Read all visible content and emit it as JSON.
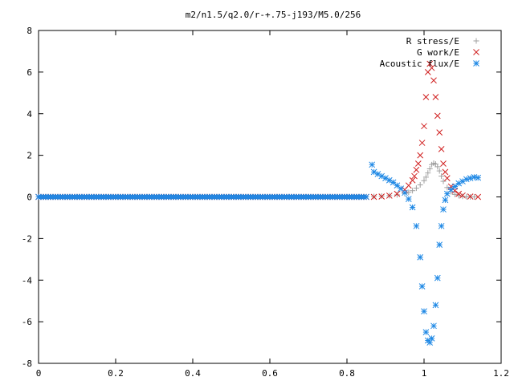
{
  "chart_data": {
    "type": "scatter",
    "title": "m2/n1.5/q2.0/r-+.75-j193/M5.0/256",
    "xlabel": "",
    "ylabel": "",
    "xlim": [
      0,
      1.2
    ],
    "ylim": [
      -8,
      8
    ],
    "x_ticks": [
      "0",
      "0.2",
      "0.4",
      "0.6",
      "0.8",
      "1",
      "1.2"
    ],
    "y_ticks": [
      "8",
      "6",
      "4",
      "2",
      "0",
      "-2",
      "-4",
      "-6",
      "-8"
    ],
    "x_tick_values": [
      0,
      0.2,
      0.4,
      0.6,
      0.8,
      1.0,
      1.2
    ],
    "y_tick_values": [
      8,
      6,
      4,
      2,
      0,
      -2,
      -4,
      -6,
      -8
    ],
    "grid": false,
    "legend_position": "top-right",
    "series": [
      {
        "name": "R stress/E",
        "marker": "plus",
        "color": "#a0a0a0",
        "x": [
          0.0,
          0.05,
          0.1,
          0.15,
          0.2,
          0.25,
          0.3,
          0.35,
          0.4,
          0.45,
          0.5,
          0.55,
          0.6,
          0.65,
          0.7,
          0.75,
          0.8,
          0.85,
          0.87,
          0.89,
          0.91,
          0.93,
          0.95,
          0.96,
          0.97,
          0.98,
          0.99,
          1.0,
          1.005,
          1.01,
          1.015,
          1.02,
          1.025,
          1.03,
          1.035,
          1.04,
          1.045,
          1.05,
          1.06,
          1.07,
          1.08,
          1.09,
          1.1,
          1.11,
          1.12,
          1.13
        ],
        "y": [
          0,
          0,
          0,
          0,
          0,
          0,
          0,
          0,
          0,
          0,
          0,
          0,
          0,
          0,
          0,
          0,
          0,
          0,
          0.02,
          0.04,
          0.06,
          0.1,
          0.16,
          0.22,
          0.3,
          0.42,
          0.58,
          0.78,
          0.95,
          1.15,
          1.35,
          1.55,
          1.62,
          1.58,
          1.45,
          1.25,
          1.0,
          0.75,
          0.45,
          0.25,
          0.12,
          0.06,
          0.03,
          0.01,
          0.0,
          0.0
        ]
      },
      {
        "name": "G work/E",
        "marker": "cross",
        "color": "#d02020",
        "x": [
          0.0,
          0.05,
          0.1,
          0.15,
          0.2,
          0.25,
          0.3,
          0.35,
          0.4,
          0.45,
          0.5,
          0.55,
          0.6,
          0.65,
          0.7,
          0.75,
          0.8,
          0.85,
          0.87,
          0.89,
          0.91,
          0.93,
          0.95,
          0.96,
          0.97,
          0.975,
          0.98,
          0.985,
          0.99,
          0.995,
          1.0,
          1.005,
          1.01,
          1.015,
          1.02,
          1.025,
          1.03,
          1.035,
          1.04,
          1.045,
          1.05,
          1.055,
          1.06,
          1.07,
          1.08,
          1.09,
          1.1,
          1.12,
          1.14
        ],
        "y": [
          0,
          0,
          0,
          0,
          0,
          0,
          0,
          0,
          0,
          0,
          0,
          0,
          0,
          0,
          0,
          0,
          0,
          0,
          0.0,
          0.02,
          0.06,
          0.15,
          0.35,
          0.55,
          0.8,
          1.0,
          1.3,
          1.6,
          2.0,
          2.6,
          3.4,
          4.8,
          6.0,
          6.4,
          6.2,
          5.6,
          4.8,
          3.9,
          3.1,
          2.3,
          1.6,
          1.2,
          0.9,
          0.5,
          0.3,
          0.15,
          0.07,
          0.02,
          0.0
        ]
      },
      {
        "name": "Acoustic flux/E",
        "marker": "star",
        "color": "#1e88e5",
        "x": [
          0.0,
          0.05,
          0.1,
          0.15,
          0.2,
          0.25,
          0.3,
          0.35,
          0.4,
          0.45,
          0.5,
          0.55,
          0.6,
          0.65,
          0.7,
          0.75,
          0.8,
          0.85,
          0.865,
          0.87,
          0.88,
          0.89,
          0.9,
          0.91,
          0.92,
          0.93,
          0.94,
          0.95,
          0.96,
          0.97,
          0.98,
          0.99,
          0.995,
          1.0,
          1.005,
          1.01,
          1.015,
          1.02,
          1.025,
          1.03,
          1.035,
          1.04,
          1.045,
          1.05,
          1.055,
          1.06,
          1.07,
          1.08,
          1.09,
          1.1,
          1.11,
          1.12,
          1.13,
          1.14
        ],
        "y": [
          0,
          0,
          0,
          0,
          0,
          0,
          0,
          0,
          0,
          0,
          0,
          0,
          0,
          0,
          0,
          0,
          0,
          0,
          1.55,
          1.2,
          1.1,
          1.0,
          0.9,
          0.8,
          0.7,
          0.55,
          0.4,
          0.2,
          -0.1,
          -0.5,
          -1.4,
          -2.9,
          -4.3,
          -5.5,
          -6.5,
          -6.9,
          -7.0,
          -6.8,
          -6.2,
          -5.2,
          -3.9,
          -2.3,
          -1.4,
          -0.6,
          -0.15,
          0.15,
          0.35,
          0.5,
          0.65,
          0.75,
          0.85,
          0.9,
          0.95,
          0.92
        ]
      }
    ]
  }
}
